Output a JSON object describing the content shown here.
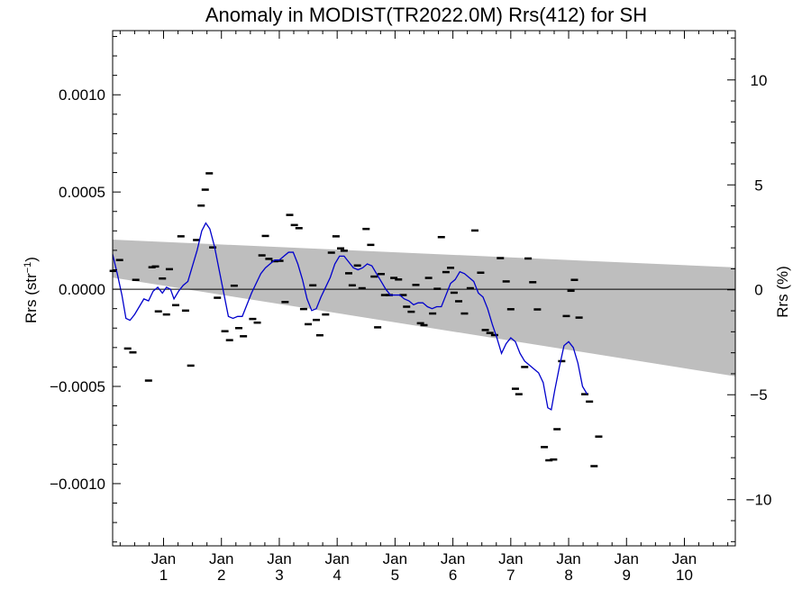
{
  "chart_data": {
    "type": "line",
    "title": "Anomaly in MODIST(TR2022.0M) Rrs(412) for SH",
    "ylabel_left": "Rrs (str",
    "ylabel_left_sup": "−1",
    "ylabel_left_close": ")",
    "ylabel_right": "Rrs (%)",
    "xlim": [
      0.12,
      10.88
    ],
    "ylim_left": [
      -0.00132,
      0.00133
    ],
    "ylim_right": [
      -12.2,
      12.35
    ],
    "x_ticks": [
      {
        "x": 1,
        "top": "Jan",
        "bottom": "1"
      },
      {
        "x": 2,
        "top": "Jan",
        "bottom": "2"
      },
      {
        "x": 3,
        "top": "Jan",
        "bottom": "3"
      },
      {
        "x": 4,
        "top": "Jan",
        "bottom": "4"
      },
      {
        "x": 5,
        "top": "Jan",
        "bottom": "5"
      },
      {
        "x": 6,
        "top": "Jan",
        "bottom": "6"
      },
      {
        "x": 7,
        "top": "Jan",
        "bottom": "7"
      },
      {
        "x": 8,
        "top": "Jan",
        "bottom": "8"
      },
      {
        "x": 9,
        "top": "Jan",
        "bottom": "9"
      },
      {
        "x": 10,
        "top": "Jan",
        "bottom": "10"
      }
    ],
    "y_ticks_left": [
      {
        "value": 0.001,
        "label": "0.0010"
      },
      {
        "value": 0.0005,
        "label": "0.0005"
      },
      {
        "value": 0.0,
        "label": "0.0000"
      },
      {
        "value": -0.0005,
        "label": "−0.0005"
      },
      {
        "value": -0.001,
        "label": "−0.0010"
      }
    ],
    "y_ticks_right": [
      {
        "value": 10,
        "label": "10"
      },
      {
        "value": 5,
        "label": "5"
      },
      {
        "value": 0,
        "label": "0"
      },
      {
        "value": -5,
        "label": "−5"
      },
      {
        "value": -10,
        "label": "−10"
      }
    ],
    "band": {
      "color": "#bebebe",
      "upper": [
        [
          0.12,
          0.000255
        ],
        [
          10.88,
          0.000112
        ]
      ],
      "lower": [
        [
          0.12,
          6e-05
        ],
        [
          10.88,
          -0.000448
        ]
      ]
    },
    "zero_line": 0,
    "points": [
      [
        0.13,
        9.4e-05
      ],
      [
        0.24,
        0.00015
      ],
      [
        0.38,
        -0.000305
      ],
      [
        0.47,
        -0.000325
      ],
      [
        0.52,
        4.8e-05
      ],
      [
        0.74,
        -0.00047
      ],
      [
        0.8,
        0.000113
      ],
      [
        0.86,
        0.000117
      ],
      [
        0.91,
        -0.000114
      ],
      [
        0.98,
        5.5e-05
      ],
      [
        1.05,
        -0.00013
      ],
      [
        1.1,
        0.000103
      ],
      [
        1.21,
        -8.2e-05
      ],
      [
        1.3,
        0.000272
      ],
      [
        1.38,
        -0.00011
      ],
      [
        1.47,
        -0.000393
      ],
      [
        1.57,
        0.000253
      ],
      [
        1.65,
        0.00043
      ],
      [
        1.72,
        0.000512
      ],
      [
        1.79,
        0.000596
      ],
      [
        1.85,
        0.000215
      ],
      [
        1.93,
        -4.4e-05
      ],
      [
        2.06,
        -0.000216
      ],
      [
        2.14,
        -0.000262
      ],
      [
        2.22,
        1.8e-05
      ],
      [
        2.3,
        -0.0002
      ],
      [
        2.38,
        -0.000242
      ],
      [
        2.54,
        -0.000153
      ],
      [
        2.62,
        -0.000172
      ],
      [
        2.7,
        0.000174
      ],
      [
        2.76,
        0.000274
      ],
      [
        2.82,
        0.000156
      ],
      [
        2.92,
        0.000144
      ],
      [
        3.01,
        0.000146
      ],
      [
        3.1,
        -6.6e-05
      ],
      [
        3.18,
        0.000382
      ],
      [
        3.26,
        0.00033
      ],
      [
        3.34,
        0.000314
      ],
      [
        3.42,
        -0.000102
      ],
      [
        3.5,
        -0.00018
      ],
      [
        3.58,
        2e-05
      ],
      [
        3.64,
        -0.000158
      ],
      [
        3.7,
        -0.000237
      ],
      [
        3.8,
        -0.00013
      ],
      [
        3.9,
        0.000188
      ],
      [
        3.98,
        0.000272
      ],
      [
        4.06,
        0.00021
      ],
      [
        4.12,
        0.000198
      ],
      [
        4.2,
        8.2e-05
      ],
      [
        4.26,
        2e-05
      ],
      [
        4.35,
        0.000122
      ],
      [
        4.43,
        5e-06
      ],
      [
        4.5,
        0.00031
      ],
      [
        4.58,
        0.000228
      ],
      [
        4.64,
        6.5e-05
      ],
      [
        4.7,
        -0.000196
      ],
      [
        4.76,
        7.8e-05
      ],
      [
        4.82,
        -3e-05
      ],
      [
        4.9,
        -3e-05
      ],
      [
        4.98,
        5.8e-05
      ],
      [
        5.06,
        5e-05
      ],
      [
        5.14,
        -3e-05
      ],
      [
        5.2,
        -9e-05
      ],
      [
        5.28,
        -0.000116
      ],
      [
        5.36,
        2.2e-05
      ],
      [
        5.44,
        -0.000175
      ],
      [
        5.5,
        -0.000185
      ],
      [
        5.58,
        5.8e-05
      ],
      [
        5.65,
        -0.000125
      ],
      [
        5.73,
        2e-06
      ],
      [
        5.8,
        0.000268
      ],
      [
        5.88,
        8.8e-05
      ],
      [
        5.96,
        0.00011
      ],
      [
        6.02,
        -1.8e-05
      ],
      [
        6.1,
        -6.2e-05
      ],
      [
        6.2,
        -0.000125
      ],
      [
        6.3,
        5e-06
      ],
      [
        6.38,
        0.000302
      ],
      [
        6.48,
        8.5e-05
      ],
      [
        6.56,
        -0.00021
      ],
      [
        6.64,
        -0.000225
      ],
      [
        6.72,
        -0.000236
      ],
      [
        6.82,
        0.00016
      ],
      [
        6.92,
        4e-05
      ],
      [
        7.0,
        -0.000103
      ],
      [
        7.08,
        -0.000512
      ],
      [
        7.14,
        -0.00054
      ],
      [
        7.24,
        -0.0004
      ],
      [
        7.3,
        0.000158
      ],
      [
        7.38,
        3.6e-05
      ],
      [
        7.46,
        -0.000104
      ],
      [
        7.58,
        -0.000812
      ],
      [
        7.66,
        -0.00088
      ],
      [
        7.74,
        -0.000876
      ],
      [
        7.8,
        -0.00072
      ],
      [
        7.88,
        -0.00037
      ],
      [
        7.96,
        -0.000138
      ],
      [
        8.04,
        -8e-06
      ],
      [
        8.1,
        4.8e-05
      ],
      [
        8.18,
        -0.000146
      ],
      [
        8.28,
        -0.00054
      ],
      [
        8.36,
        -0.000578
      ],
      [
        8.44,
        -0.00091
      ],
      [
        8.52,
        -0.000758
      ]
    ],
    "line_color": "#0000cc",
    "line": [
      [
        0.12,
        0.00018
      ],
      [
        0.2,
        8e-05
      ],
      [
        0.28,
        -3e-05
      ],
      [
        0.35,
        -0.00015
      ],
      [
        0.42,
        -0.00016
      ],
      [
        0.5,
        -0.00013
      ],
      [
        0.58,
        -9e-05
      ],
      [
        0.66,
        -5e-05
      ],
      [
        0.74,
        -6e-05
      ],
      [
        0.82,
        -1e-05
      ],
      [
        0.9,
        1e-05
      ],
      [
        0.98,
        -2e-05
      ],
      [
        1.05,
        1e-05
      ],
      [
        1.12,
        0.0
      ],
      [
        1.18,
        -5e-05
      ],
      [
        1.26,
        -1e-05
      ],
      [
        1.34,
        2e-05
      ],
      [
        1.42,
        4e-05
      ],
      [
        1.5,
        0.00012
      ],
      [
        1.58,
        0.0002
      ],
      [
        1.66,
        0.0003
      ],
      [
        1.73,
        0.00034
      ],
      [
        1.8,
        0.00031
      ],
      [
        1.88,
        0.00022
      ],
      [
        1.96,
        0.0001
      ],
      [
        2.04,
        -2e-05
      ],
      [
        2.12,
        -0.00014
      ],
      [
        2.2,
        -0.00015
      ],
      [
        2.28,
        -0.00014
      ],
      [
        2.36,
        -0.00014
      ],
      [
        2.44,
        -8e-05
      ],
      [
        2.52,
        -2e-05
      ],
      [
        2.6,
        3e-05
      ],
      [
        2.68,
        8e-05
      ],
      [
        2.76,
        0.00011
      ],
      [
        2.84,
        0.00013
      ],
      [
        2.92,
        0.00015
      ],
      [
        3.0,
        0.00015
      ],
      [
        3.08,
        0.00017
      ],
      [
        3.16,
        0.00019
      ],
      [
        3.24,
        0.00019
      ],
      [
        3.32,
        0.00013
      ],
      [
        3.4,
        5e-05
      ],
      [
        3.48,
        -5e-05
      ],
      [
        3.56,
        -0.00011
      ],
      [
        3.64,
        -0.0001
      ],
      [
        3.72,
        -4e-05
      ],
      [
        3.8,
        1e-05
      ],
      [
        3.88,
        6e-05
      ],
      [
        3.96,
        0.00013
      ],
      [
        4.04,
        0.00017
      ],
      [
        4.12,
        0.00017
      ],
      [
        4.2,
        0.00014
      ],
      [
        4.28,
        0.00011
      ],
      [
        4.36,
        0.0001
      ],
      [
        4.44,
        0.00011
      ],
      [
        4.52,
        0.00013
      ],
      [
        4.6,
        0.00012
      ],
      [
        4.68,
        8e-05
      ],
      [
        4.76,
        4e-05
      ],
      [
        4.84,
        0.0
      ],
      [
        4.92,
        -3e-05
      ],
      [
        5.0,
        -3e-05
      ],
      [
        5.08,
        -3e-05
      ],
      [
        5.16,
        -5e-05
      ],
      [
        5.24,
        -6e-05
      ],
      [
        5.32,
        -8e-05
      ],
      [
        5.4,
        -7e-05
      ],
      [
        5.48,
        -7e-05
      ],
      [
        5.56,
        -9e-05
      ],
      [
        5.64,
        -0.0001
      ],
      [
        5.72,
        -9e-05
      ],
      [
        5.8,
        -9e-05
      ],
      [
        5.88,
        -3e-05
      ],
      [
        5.96,
        3e-05
      ],
      [
        6.04,
        5e-05
      ],
      [
        6.12,
        9e-05
      ],
      [
        6.2,
        8e-05
      ],
      [
        6.28,
        6e-05
      ],
      [
        6.36,
        4e-05
      ],
      [
        6.44,
        -2e-05
      ],
      [
        6.52,
        -4e-05
      ],
      [
        6.6,
        -0.0001
      ],
      [
        6.68,
        -0.00018
      ],
      [
        6.76,
        -0.00025
      ],
      [
        6.84,
        -0.00033
      ],
      [
        6.92,
        -0.00028
      ],
      [
        7.0,
        -0.00025
      ],
      [
        7.08,
        -0.00027
      ],
      [
        7.16,
        -0.00033
      ],
      [
        7.24,
        -0.00037
      ],
      [
        7.32,
        -0.00039
      ],
      [
        7.4,
        -0.00041
      ],
      [
        7.48,
        -0.00043
      ],
      [
        7.56,
        -0.00048
      ],
      [
        7.64,
        -0.00061
      ],
      [
        7.7,
        -0.00062
      ],
      [
        7.76,
        -0.00052
      ],
      [
        7.84,
        -0.0004
      ],
      [
        7.92,
        -0.00029
      ],
      [
        8.0,
        -0.00027
      ],
      [
        8.08,
        -0.0003
      ],
      [
        8.16,
        -0.00038
      ],
      [
        8.24,
        -0.0005
      ],
      [
        8.32,
        -0.00054
      ]
    ]
  }
}
